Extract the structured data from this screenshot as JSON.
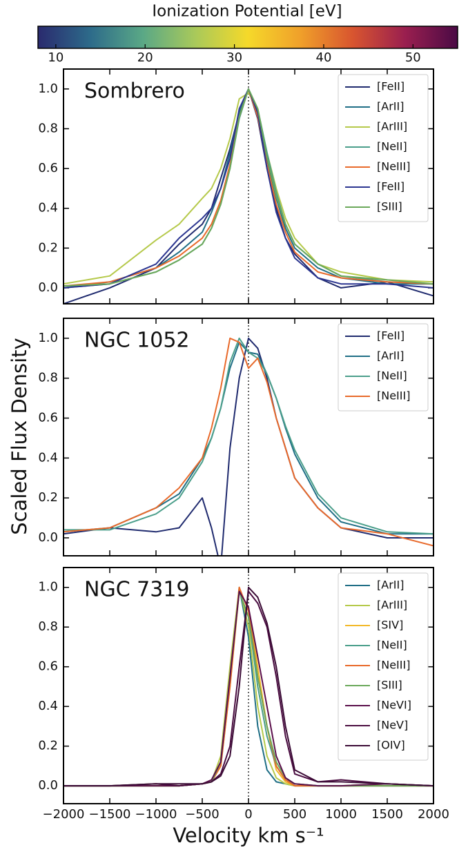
{
  "colorbar": {
    "label": "Ionization Potential [eV]",
    "lim": [
      8,
      55
    ],
    "ticks": [
      10,
      20,
      30,
      40,
      50
    ],
    "colors": [
      "#2a2a6e",
      "#2d6b8a",
      "#5aa886",
      "#a9c95a",
      "#f5d92a",
      "#f0a02a",
      "#d8552f",
      "#9a1f4f",
      "#4a0a45"
    ]
  },
  "ylabel": "Scaled Flux Density",
  "xlabel": "Velocity km s⁻¹",
  "chart_data": [
    {
      "type": "line",
      "title": "Sombrero",
      "legend": "upper right",
      "vline": 0,
      "show_xtick_labels": false,
      "x": [
        -2000,
        -1500,
        -1000,
        -750,
        -500,
        -400,
        -300,
        -200,
        -100,
        0,
        100,
        200,
        300,
        400,
        500,
        750,
        1000,
        1500,
        2000
      ],
      "xlim": [
        -2000,
        2000
      ],
      "xticks": [
        -2000,
        -1500,
        -1000,
        -500,
        0,
        500,
        1000,
        1500,
        2000
      ],
      "ylim": [
        -0.08,
        1.1
      ],
      "yticks": [
        {
          "value": 0,
          "label": "0.0"
        },
        {
          "value": 0.2,
          "label": "0.2"
        },
        {
          "value": 0.4,
          "label": "0.4"
        },
        {
          "value": 0.6,
          "label": "0.6"
        },
        {
          "value": 0.8,
          "label": "0.8"
        },
        {
          "value": 1,
          "label": "1.0"
        }
      ],
      "series": [
        {
          "name": "[FeII]",
          "color": "#1f2a6e",
          "values": [
            -0.08,
            0.0,
            0.1,
            0.22,
            0.32,
            0.4,
            0.55,
            0.7,
            0.88,
            1.0,
            0.85,
            0.6,
            0.4,
            0.25,
            0.17,
            0.05,
            0.0,
            0.03,
            -0.04
          ]
        },
        {
          "name": "[ArII]",
          "color": "#1f6e85",
          "values": [
            0.0,
            0.03,
            0.1,
            0.18,
            0.28,
            0.38,
            0.5,
            0.68,
            0.88,
            1.0,
            0.88,
            0.65,
            0.45,
            0.3,
            0.2,
            0.1,
            0.05,
            0.02,
            0.02
          ]
        },
        {
          "name": "[ArIII]",
          "color": "#b5c94a",
          "values": [
            0.02,
            0.06,
            0.24,
            0.32,
            0.45,
            0.5,
            0.6,
            0.75,
            0.95,
            0.98,
            0.9,
            0.68,
            0.5,
            0.35,
            0.25,
            0.12,
            0.08,
            0.04,
            0.03
          ]
        },
        {
          "name": "[NeII]",
          "color": "#4a9e8a",
          "values": [
            0.0,
            0.02,
            0.08,
            0.14,
            0.22,
            0.3,
            0.42,
            0.6,
            0.85,
            1.0,
            0.9,
            0.68,
            0.48,
            0.32,
            0.22,
            0.12,
            0.06,
            0.03,
            0.02
          ]
        },
        {
          "name": "[NeIII]",
          "color": "#e8692a",
          "values": [
            0.01,
            0.03,
            0.1,
            0.16,
            0.25,
            0.32,
            0.44,
            0.62,
            0.86,
            1.0,
            0.86,
            0.62,
            0.42,
            0.28,
            0.18,
            0.08,
            0.05,
            0.03,
            0.02
          ]
        },
        {
          "name": "[FeII]",
          "color": "#2b3590",
          "values": [
            0.0,
            0.02,
            0.12,
            0.25,
            0.35,
            0.4,
            0.5,
            0.65,
            0.9,
            1.0,
            0.88,
            0.6,
            0.38,
            0.25,
            0.15,
            0.05,
            0.02,
            0.02,
            0.0
          ]
        },
        {
          "name": "[SIII]",
          "color": "#6aa85a",
          "values": [
            0.01,
            0.02,
            0.08,
            0.14,
            0.22,
            0.3,
            0.42,
            0.6,
            0.86,
            1.0,
            0.9,
            0.66,
            0.46,
            0.32,
            0.22,
            0.12,
            0.06,
            0.04,
            0.02
          ]
        }
      ]
    },
    {
      "type": "line",
      "title": "NGC 1052",
      "legend": "upper right",
      "vline": 0,
      "show_xtick_labels": false,
      "x": [
        -2000,
        -1500,
        -1000,
        -750,
        -500,
        -400,
        -300,
        -200,
        -100,
        0,
        100,
        200,
        300,
        400,
        500,
        750,
        1000,
        1500,
        2000
      ],
      "xlim": [
        -2000,
        2000
      ],
      "xticks": [
        -2000,
        -1500,
        -1000,
        -500,
        0,
        500,
        1000,
        1500,
        2000
      ],
      "ylim": [
        -0.09,
        1.1
      ],
      "yticks": [
        {
          "value": 0,
          "label": "0.0"
        },
        {
          "value": 0.2,
          "label": "0.2"
        },
        {
          "value": 0.4,
          "label": "0.4"
        },
        {
          "value": 0.6,
          "label": "0.6"
        },
        {
          "value": 0.8,
          "label": "0.8"
        },
        {
          "value": 1,
          "label": "1.0"
        }
      ],
      "series": [
        {
          "name": "[FeII]",
          "color": "#1f2a6e",
          "values": [
            0.02,
            0.05,
            0.03,
            0.05,
            0.2,
            0.05,
            -0.15,
            0.45,
            0.8,
            1.0,
            0.95,
            0.8,
            0.6,
            0.45,
            0.3,
            0.15,
            0.05,
            0.0,
            0.0
          ]
        },
        {
          "name": "[ArII]",
          "color": "#1f6e85",
          "values": [
            0.03,
            0.05,
            0.15,
            0.22,
            0.4,
            0.5,
            0.65,
            0.85,
            0.98,
            0.93,
            0.92,
            0.82,
            0.7,
            0.55,
            0.42,
            0.2,
            0.08,
            0.02,
            0.02
          ]
        },
        {
          "name": "[NeII]",
          "color": "#4a9e8a",
          "values": [
            0.04,
            0.04,
            0.12,
            0.2,
            0.38,
            0.5,
            0.65,
            0.88,
            1.0,
            0.93,
            0.9,
            0.82,
            0.7,
            0.56,
            0.44,
            0.22,
            0.1,
            0.03,
            0.02
          ]
        },
        {
          "name": "[NeIII]",
          "color": "#e8692a",
          "values": [
            0.03,
            0.05,
            0.15,
            0.25,
            0.4,
            0.55,
            0.75,
            1.0,
            0.98,
            0.85,
            0.9,
            0.78,
            0.6,
            0.45,
            0.3,
            0.15,
            0.05,
            0.02,
            -0.04
          ]
        }
      ]
    },
    {
      "type": "line",
      "title": "NGC 7319",
      "legend": "upper right",
      "vline": 0,
      "show_xtick_labels": true,
      "x": [
        -2000,
        -1500,
        -1000,
        -750,
        -500,
        -400,
        -300,
        -200,
        -100,
        0,
        100,
        200,
        300,
        400,
        500,
        750,
        1000,
        1500,
        2000
      ],
      "xlim": [
        -2000,
        2000
      ],
      "xticks": [
        {
          "value": -2000,
          "label": "−2000"
        },
        {
          "value": -1500,
          "label": "−1500"
        },
        {
          "value": -1000,
          "label": "−1000"
        },
        {
          "value": -500,
          "label": "−500"
        },
        0,
        500,
        1000,
        1500,
        2000
      ],
      "ylim": [
        -0.09,
        1.1
      ],
      "yticks": [
        {
          "value": 0,
          "label": "0.0"
        },
        {
          "value": 0.2,
          "label": "0.2"
        },
        {
          "value": 0.4,
          "label": "0.4"
        },
        {
          "value": 0.6,
          "label": "0.6"
        },
        {
          "value": 0.8,
          "label": "0.8"
        },
        {
          "value": 1,
          "label": "1.0"
        }
      ],
      "series": [
        {
          "name": "[ArII]",
          "color": "#1f6e85",
          "values": [
            0,
            0,
            0,
            0,
            0.01,
            0.02,
            0.12,
            0.55,
            1.0,
            0.75,
            0.3,
            0.08,
            0.02,
            0.01,
            0,
            0,
            0,
            0,
            0
          ]
        },
        {
          "name": "[ArIII]",
          "color": "#b5c94a",
          "values": [
            0,
            0,
            0.01,
            0,
            0.01,
            0.02,
            0.15,
            0.6,
            1.0,
            0.8,
            0.4,
            0.15,
            0.04,
            0.01,
            0,
            0,
            0,
            0.01,
            0
          ]
        },
        {
          "name": "[SIV]",
          "color": "#f2b92a",
          "values": [
            0,
            0,
            0,
            0,
            0.01,
            0.02,
            0.1,
            0.5,
            0.98,
            0.9,
            0.6,
            0.3,
            0.08,
            0.02,
            0,
            0,
            0,
            0,
            0
          ]
        },
        {
          "name": "[NeII]",
          "color": "#4a9e8a",
          "values": [
            0,
            0,
            0,
            0,
            0.01,
            0.02,
            0.12,
            0.55,
            0.98,
            0.85,
            0.5,
            0.25,
            0.1,
            0.03,
            0.01,
            0,
            0,
            0,
            0
          ]
        },
        {
          "name": "[NeIII]",
          "color": "#e8692a",
          "values": [
            0,
            0,
            0,
            0,
            0.01,
            0.02,
            0.1,
            0.5,
            1.0,
            0.88,
            0.55,
            0.3,
            0.1,
            0.03,
            0,
            0,
            0,
            0,
            0
          ]
        },
        {
          "name": "[SIII]",
          "color": "#6aa85a",
          "values": [
            0,
            0,
            0,
            0,
            0.01,
            0.02,
            0.12,
            0.55,
            0.98,
            0.85,
            0.55,
            0.3,
            0.12,
            0.04,
            0.01,
            0,
            0,
            0,
            0
          ]
        },
        {
          "name": "[NeVI]",
          "color": "#5a0e4a",
          "values": [
            0,
            0,
            0,
            0,
            0.01,
            0.03,
            0.12,
            0.55,
            0.98,
            0.9,
            0.65,
            0.4,
            0.15,
            0.04,
            0.01,
            0,
            0,
            0.01,
            0
          ]
        },
        {
          "name": "[NeV]",
          "color": "#4a0c40",
          "values": [
            0,
            0,
            0.01,
            0,
            0.01,
            0.02,
            0.06,
            0.2,
            0.6,
            0.98,
            0.92,
            0.8,
            0.55,
            0.25,
            0.06,
            0.02,
            0.03,
            0.01,
            0
          ]
        },
        {
          "name": "[OIV]",
          "color": "#3a0a35",
          "values": [
            0,
            0,
            0.01,
            0.01,
            0.01,
            0.02,
            0.05,
            0.15,
            0.5,
            1.0,
            0.95,
            0.82,
            0.6,
            0.3,
            0.08,
            0.02,
            0.02,
            0.01,
            0
          ]
        }
      ]
    }
  ]
}
